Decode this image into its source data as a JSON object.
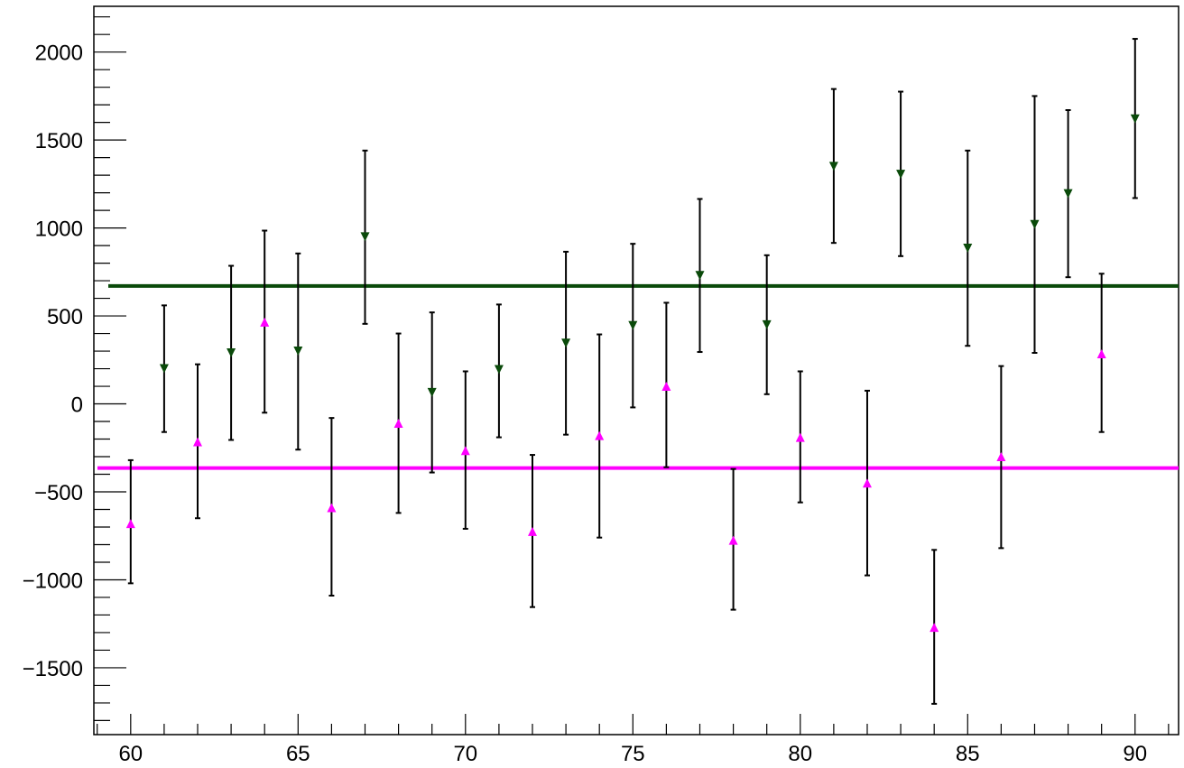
{
  "chart_data": {
    "type": "scatter",
    "title": "",
    "xlabel": "",
    "ylabel": "",
    "xlim": [
      58.9,
      91.3
    ],
    "ylim": [
      -1880,
      2260
    ],
    "grid": false,
    "xticks": [
      {
        "value": 60,
        "label": "60"
      },
      {
        "value": 65,
        "label": "65"
      },
      {
        "value": 70,
        "label": "70"
      },
      {
        "value": 75,
        "label": "75"
      },
      {
        "value": 80,
        "label": "80"
      },
      {
        "value": 85,
        "label": "85"
      },
      {
        "value": 90,
        "label": "90"
      }
    ],
    "yticks": [
      {
        "value": -1500,
        "label": "−1500"
      },
      {
        "value": -1000,
        "label": "−1000"
      },
      {
        "value": -500,
        "label": "−500"
      },
      {
        "value": 0,
        "label": "0"
      },
      {
        "value": 500,
        "label": "500"
      },
      {
        "value": 1000,
        "label": "1000"
      },
      {
        "value": 1500,
        "label": "1500"
      },
      {
        "value": 2000,
        "label": "2000"
      }
    ],
    "series": [
      {
        "color": "#0a4a0a",
        "marker": "triangle-down",
        "fit_constant": 670,
        "points": [
          {
            "x": 61,
            "y": 200,
            "ylow": -160,
            "yhigh": 560
          },
          {
            "x": 63,
            "y": 290,
            "ylow": -205,
            "yhigh": 785
          },
          {
            "x": 65,
            "y": 300,
            "ylow": -260,
            "yhigh": 855
          },
          {
            "x": 67,
            "y": 950,
            "ylow": 455,
            "yhigh": 1440
          },
          {
            "x": 69,
            "y": 65,
            "ylow": -390,
            "yhigh": 520
          },
          {
            "x": 71,
            "y": 195,
            "ylow": -190,
            "yhigh": 565
          },
          {
            "x": 73,
            "y": 345,
            "ylow": -175,
            "yhigh": 865
          },
          {
            "x": 75,
            "y": 445,
            "ylow": -20,
            "yhigh": 910
          },
          {
            "x": 77,
            "y": 730,
            "ylow": 295,
            "yhigh": 1165
          },
          {
            "x": 79,
            "y": 450,
            "ylow": 55,
            "yhigh": 845
          },
          {
            "x": 81,
            "y": 1350,
            "ylow": 915,
            "yhigh": 1790
          },
          {
            "x": 83,
            "y": 1305,
            "ylow": 840,
            "yhigh": 1775
          },
          {
            "x": 85,
            "y": 885,
            "ylow": 330,
            "yhigh": 1440
          },
          {
            "x": 87,
            "y": 1020,
            "ylow": 290,
            "yhigh": 1750
          },
          {
            "x": 88,
            "y": 1195,
            "ylow": 720,
            "yhigh": 1670
          },
          {
            "x": 90,
            "y": 1620,
            "ylow": 1170,
            "yhigh": 2075
          }
        ]
      },
      {
        "color": "#ff00ff",
        "marker": "triangle-up",
        "fit_constant": -365,
        "points": [
          {
            "x": 60,
            "y": -680,
            "ylow": -1020,
            "yhigh": -320
          },
          {
            "x": 62,
            "y": -215,
            "ylow": -650,
            "yhigh": 225
          },
          {
            "x": 64,
            "y": 465,
            "ylow": -50,
            "yhigh": 985
          },
          {
            "x": 66,
            "y": -590,
            "ylow": -1090,
            "yhigh": -80
          },
          {
            "x": 68,
            "y": -110,
            "ylow": -620,
            "yhigh": 400
          },
          {
            "x": 70,
            "y": -265,
            "ylow": -710,
            "yhigh": 185
          },
          {
            "x": 72,
            "y": -725,
            "ylow": -1155,
            "yhigh": -290
          },
          {
            "x": 74,
            "y": -180,
            "ylow": -760,
            "yhigh": 395
          },
          {
            "x": 76,
            "y": 100,
            "ylow": -360,
            "yhigh": 575
          },
          {
            "x": 78,
            "y": -775,
            "ylow": -1170,
            "yhigh": -370
          },
          {
            "x": 80,
            "y": -190,
            "ylow": -560,
            "yhigh": 185
          },
          {
            "x": 82,
            "y": -450,
            "ylow": -975,
            "yhigh": 75
          },
          {
            "x": 84,
            "y": -1270,
            "ylow": -1705,
            "yhigh": -830
          },
          {
            "x": 86,
            "y": -300,
            "ylow": -820,
            "yhigh": 215
          },
          {
            "x": 89,
            "y": 285,
            "ylow": -160,
            "yhigh": 740
          }
        ]
      }
    ]
  }
}
